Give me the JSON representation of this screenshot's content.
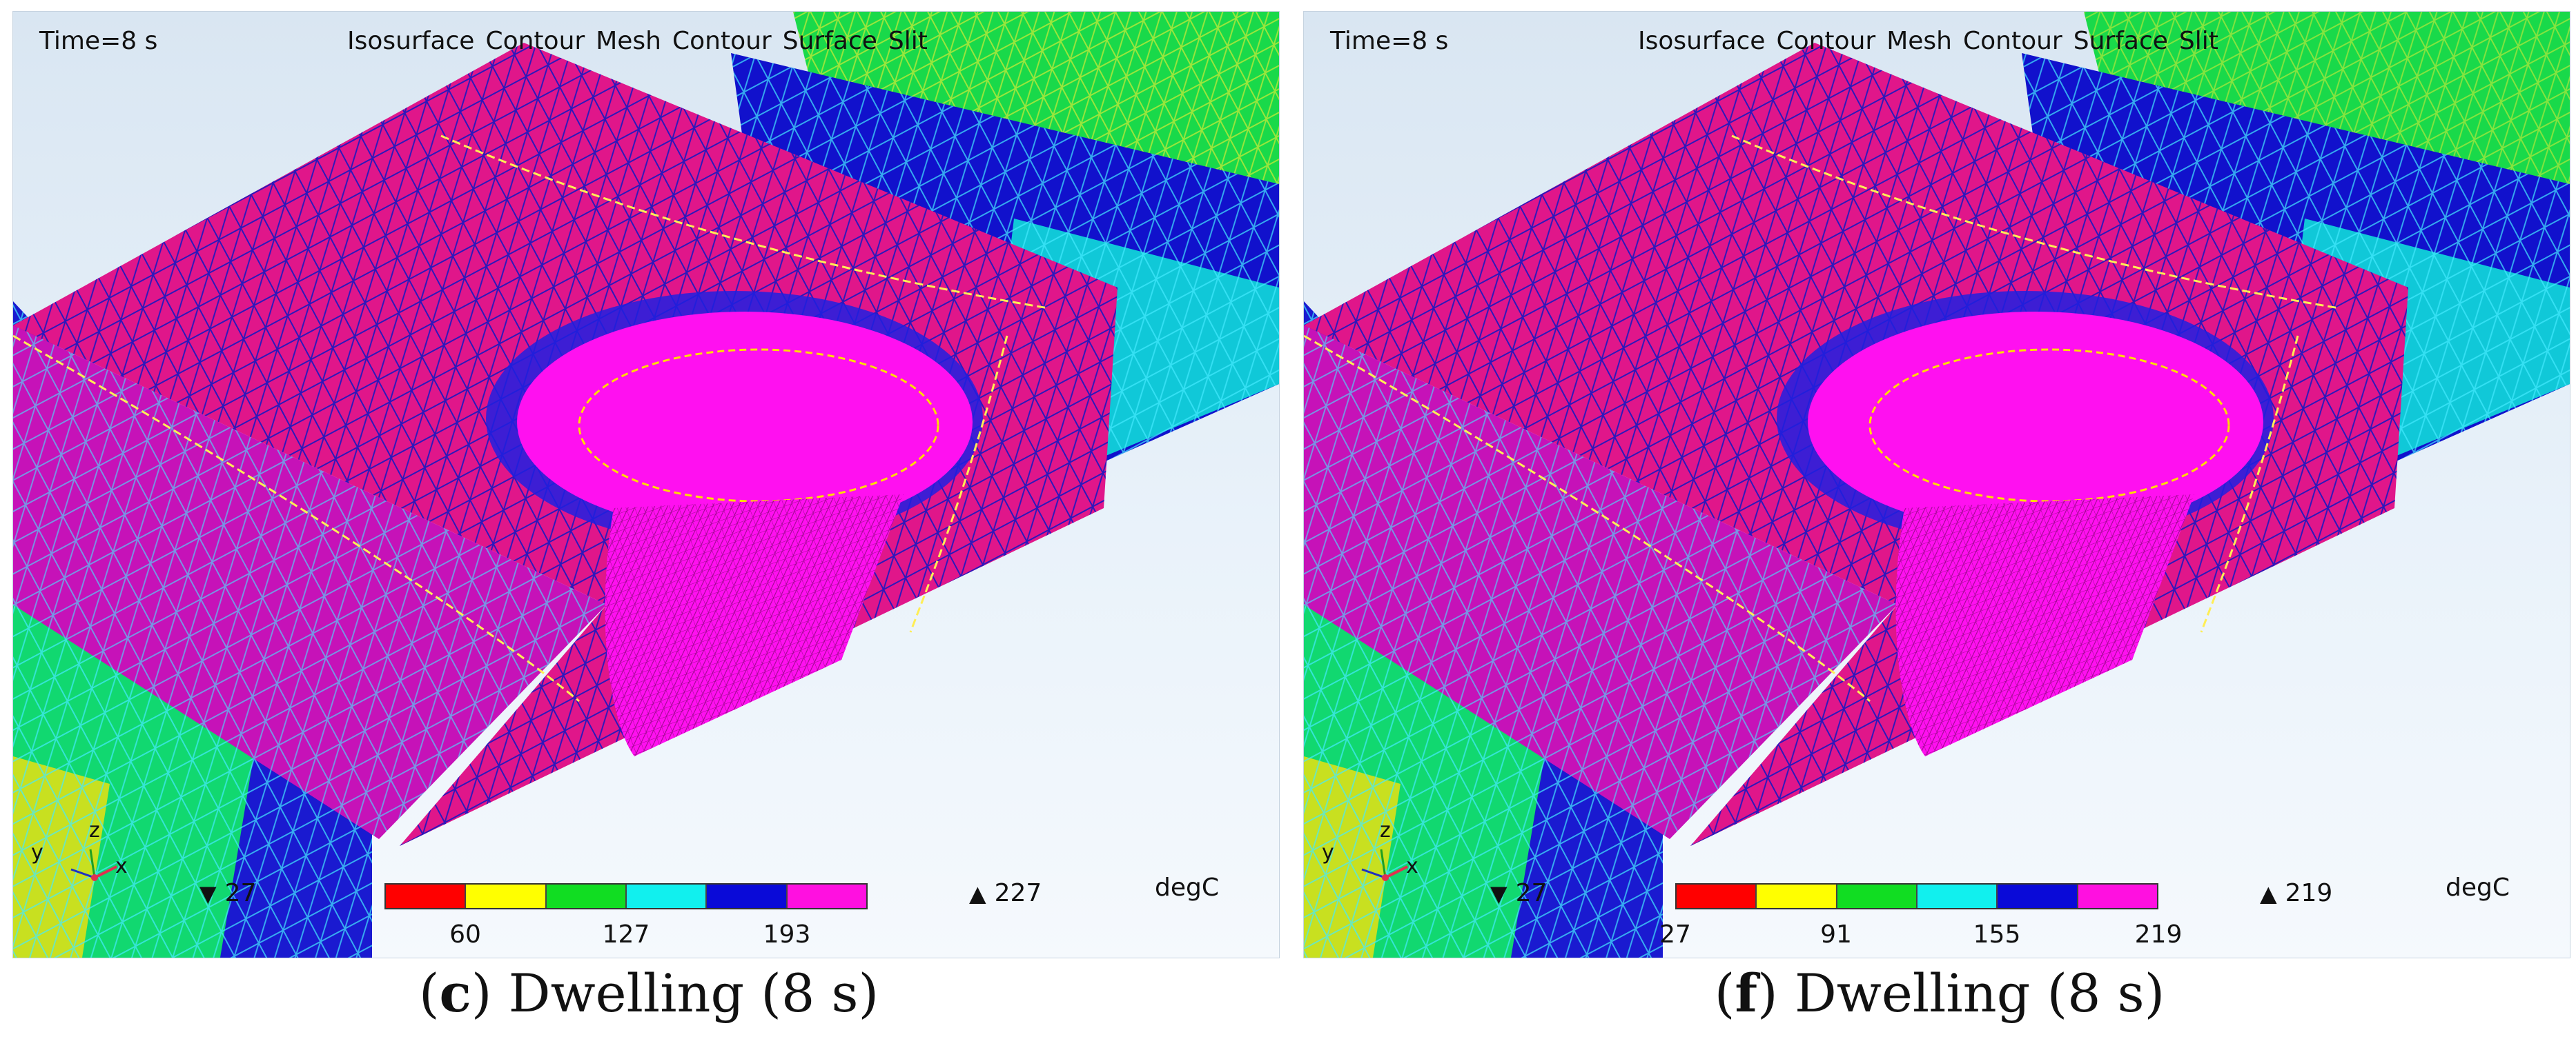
{
  "colors": {
    "band_1": "#ff0000",
    "band_2": "#ffff00",
    "band_3": "#11dd22",
    "band_4": "#11f0ee",
    "band_5": "#0a0ad8",
    "band_6": "#ff10e0",
    "mesh_dark": "#1010c8",
    "mesh_light": "#33e6ff",
    "surface_pink": "#e0168a",
    "pool_magenta": "#ff10f0"
  },
  "icons": {
    "min_marker": "down-triangle-icon",
    "max_marker": "up-triangle-icon",
    "axis_triad": "xyz-axis-triad-icon"
  },
  "panel_c": {
    "time_label": "Time=8 s",
    "menu": [
      "Isosurface",
      "Contour",
      "Mesh",
      "Contour",
      "Surface",
      "Slit"
    ],
    "axis": {
      "x": "x",
      "y": "y",
      "z": "z"
    },
    "min_value": "27",
    "max_value": "227",
    "unit": "degC",
    "ticks": [
      "60",
      "127",
      "193"
    ],
    "caption_letter": "c",
    "caption_text": "Dwelling (8 s)"
  },
  "panel_f": {
    "time_label": "Time=8 s",
    "menu": [
      "Isosurface",
      "Contour",
      "Mesh",
      "Contour",
      "Surface",
      "Slit"
    ],
    "axis": {
      "x": "x",
      "y": "y",
      "z": "z"
    },
    "min_value": "27",
    "max_value": "219",
    "unit": "degC",
    "ticks": [
      "27",
      "91",
      "155",
      "219"
    ],
    "caption_letter": "f",
    "caption_text": "Dwelling (8 s)"
  }
}
